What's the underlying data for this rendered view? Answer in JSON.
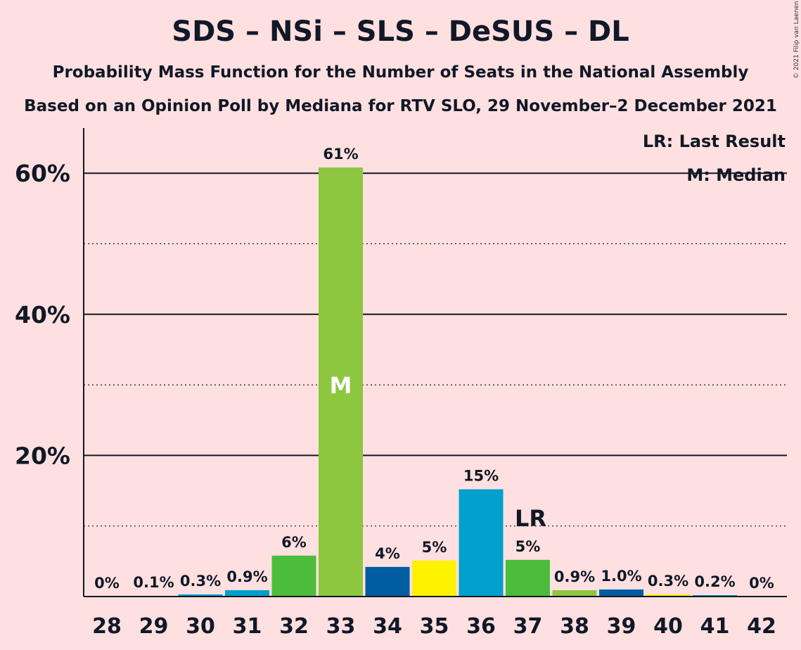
{
  "title": "SDS – NSi – SLS – DeSUS – DL",
  "subtitle1": "Probability Mass Function for the Number of Seats in the National Assembly",
  "subtitle2": "Based on an Opinion Poll by Mediana for RTV SLO, 29 November–2 December 2021",
  "copyright": "© 2021 Filip van Laenen",
  "legend": {
    "last_result": "LR: Last Result",
    "median": "M: Median"
  },
  "markers": {
    "median_label": "M",
    "last_result_label": "LR"
  },
  "chart_data": {
    "type": "bar",
    "categories": [
      "28",
      "29",
      "30",
      "31",
      "32",
      "33",
      "34",
      "35",
      "36",
      "37",
      "38",
      "39",
      "40",
      "41",
      "42"
    ],
    "values": [
      0,
      0.1,
      0.3,
      0.9,
      5.8,
      60.8,
      4.2,
      5.1,
      15.2,
      5.2,
      0.9,
      1.0,
      0.3,
      0.2,
      0
    ],
    "data_labels": [
      "0%",
      "0.1%",
      "0.3%",
      "0.9%",
      "6%",
      "61%",
      "4%",
      "5%",
      "15%",
      "5%",
      "0.9%",
      "1.0%",
      "0.3%",
      "0.2%",
      "0%"
    ],
    "colors": [
      "#4BBD3B",
      "#FFF200",
      "#009FCC",
      "#009FCC",
      "#4BBD3B",
      "#8DC63F",
      "#005DA0",
      "#FFF200",
      "#009FCC",
      "#4BBD3B",
      "#8DC63F",
      "#005DA0",
      "#FFF200",
      "#009FCC",
      "#4BBD3B"
    ],
    "ylim": [
      0,
      65
    ],
    "yticks": [
      20,
      40,
      60
    ],
    "ytick_labels": [
      "20%",
      "40%",
      "60%"
    ],
    "minor_gridlines": [
      10,
      30,
      50
    ],
    "median_seat": "33",
    "last_result_seat": "37",
    "grid": true,
    "legend_position": "top-right"
  }
}
